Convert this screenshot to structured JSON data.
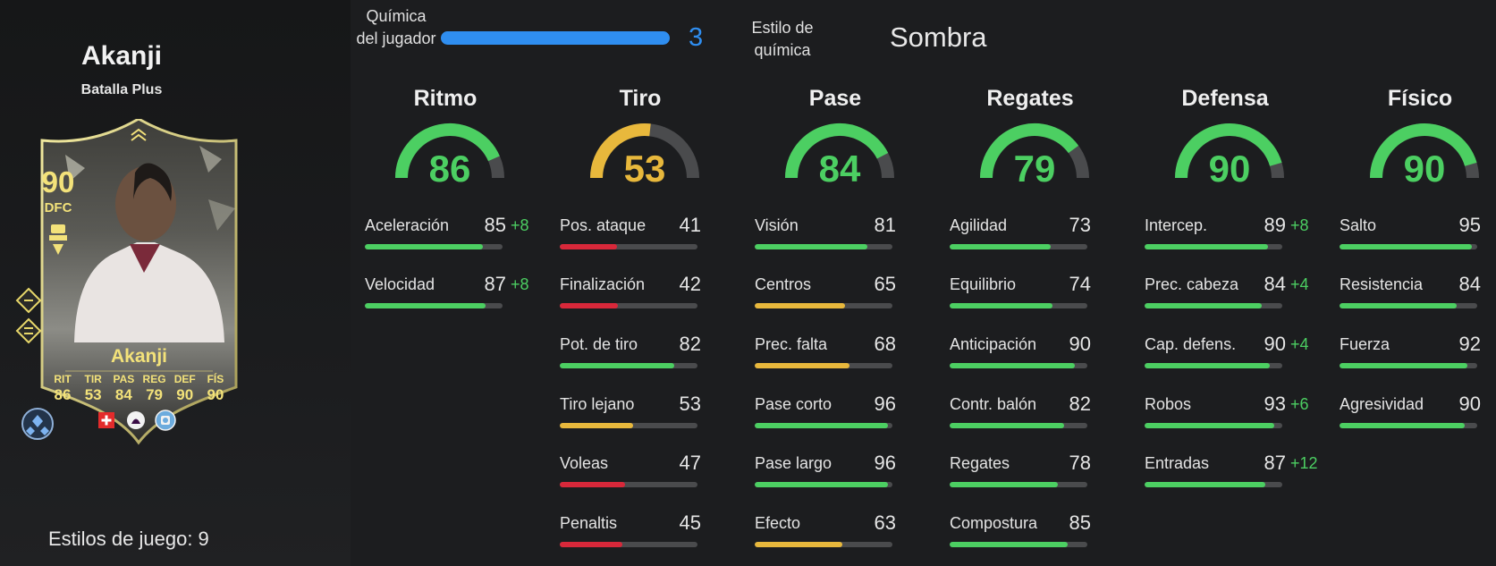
{
  "player": {
    "name": "Akanji",
    "version": "Batalla Plus",
    "playstyles_label": "Estilos de juego: 9"
  },
  "card": {
    "rating": "90",
    "position": "DFC",
    "name": "Akanji",
    "stats": [
      {
        "label": "RIT",
        "value": "86"
      },
      {
        "label": "TIR",
        "value": "53"
      },
      {
        "label": "PAS",
        "value": "84"
      },
      {
        "label": "REG",
        "value": "79"
      },
      {
        "label": "DEF",
        "value": "90"
      },
      {
        "label": "FÍS",
        "value": "90"
      }
    ],
    "icons": [
      "playstyle-icon",
      "playstyle-icon",
      "evolution-icon",
      "switzerland-flag-icon",
      "premier-league-icon",
      "manchester-city-crest-icon"
    ]
  },
  "chemistry": {
    "label": "Química del jugador",
    "value": "3",
    "progress": 1.0,
    "style_label": "Estilo de química",
    "style_value": "Sombra"
  },
  "colors": {
    "green": "#4ccf62",
    "yellow": "#e8b83c",
    "red": "#d8283a",
    "blue": "#2f8ef0",
    "track": "#4a4b4d"
  },
  "categories": [
    {
      "title": "Ritmo",
      "value": "86",
      "color": "green",
      "stats": [
        {
          "name": "Aceleración",
          "value": "85",
          "bonus": "+8",
          "color": "green"
        },
        {
          "name": "Velocidad",
          "value": "87",
          "bonus": "+8",
          "color": "green"
        }
      ]
    },
    {
      "title": "Tiro",
      "value": "53",
      "color": "yellow",
      "stats": [
        {
          "name": "Pos. ataque",
          "value": "41",
          "bonus": "",
          "color": "red"
        },
        {
          "name": "Finalización",
          "value": "42",
          "bonus": "",
          "color": "red"
        },
        {
          "name": "Pot. de tiro",
          "value": "82",
          "bonus": "",
          "color": "green"
        },
        {
          "name": "Tiro lejano",
          "value": "53",
          "bonus": "",
          "color": "yellow"
        },
        {
          "name": "Voleas",
          "value": "47",
          "bonus": "",
          "color": "red"
        },
        {
          "name": "Penaltis",
          "value": "45",
          "bonus": "",
          "color": "red"
        }
      ]
    },
    {
      "title": "Pase",
      "value": "84",
      "color": "green",
      "stats": [
        {
          "name": "Visión",
          "value": "81",
          "bonus": "",
          "color": "green"
        },
        {
          "name": "Centros",
          "value": "65",
          "bonus": "",
          "color": "yellow"
        },
        {
          "name": "Prec. falta",
          "value": "68",
          "bonus": "",
          "color": "yellow"
        },
        {
          "name": "Pase corto",
          "value": "96",
          "bonus": "",
          "color": "green"
        },
        {
          "name": "Pase largo",
          "value": "96",
          "bonus": "",
          "color": "green"
        },
        {
          "name": "Efecto",
          "value": "63",
          "bonus": "",
          "color": "yellow"
        }
      ]
    },
    {
      "title": "Regates",
      "value": "79",
      "color": "green",
      "stats": [
        {
          "name": "Agilidad",
          "value": "73",
          "bonus": "",
          "color": "green"
        },
        {
          "name": "Equilibrio",
          "value": "74",
          "bonus": "",
          "color": "green"
        },
        {
          "name": "Anticipación",
          "value": "90",
          "bonus": "",
          "color": "green"
        },
        {
          "name": "Contr. balón",
          "value": "82",
          "bonus": "",
          "color": "green"
        },
        {
          "name": "Regates",
          "value": "78",
          "bonus": "",
          "color": "green"
        },
        {
          "name": "Compostura",
          "value": "85",
          "bonus": "",
          "color": "green"
        }
      ]
    },
    {
      "title": "Defensa",
      "value": "90",
      "color": "green",
      "stats": [
        {
          "name": "Intercep.",
          "value": "89",
          "bonus": "+8",
          "color": "green"
        },
        {
          "name": "Prec. cabeza",
          "value": "84",
          "bonus": "+4",
          "color": "green"
        },
        {
          "name": "Cap. defens.",
          "value": "90",
          "bonus": "+4",
          "color": "green"
        },
        {
          "name": "Robos",
          "value": "93",
          "bonus": "+6",
          "color": "green"
        },
        {
          "name": "Entradas",
          "value": "87",
          "bonus": "+12",
          "color": "green"
        }
      ]
    },
    {
      "title": "Físico",
      "value": "90",
      "color": "green",
      "stats": [
        {
          "name": "Salto",
          "value": "95",
          "bonus": "",
          "color": "green"
        },
        {
          "name": "Resistencia",
          "value": "84",
          "bonus": "",
          "color": "green"
        },
        {
          "name": "Fuerza",
          "value": "92",
          "bonus": "",
          "color": "green"
        },
        {
          "name": "Agresividad",
          "value": "90",
          "bonus": "",
          "color": "green"
        }
      ]
    }
  ]
}
